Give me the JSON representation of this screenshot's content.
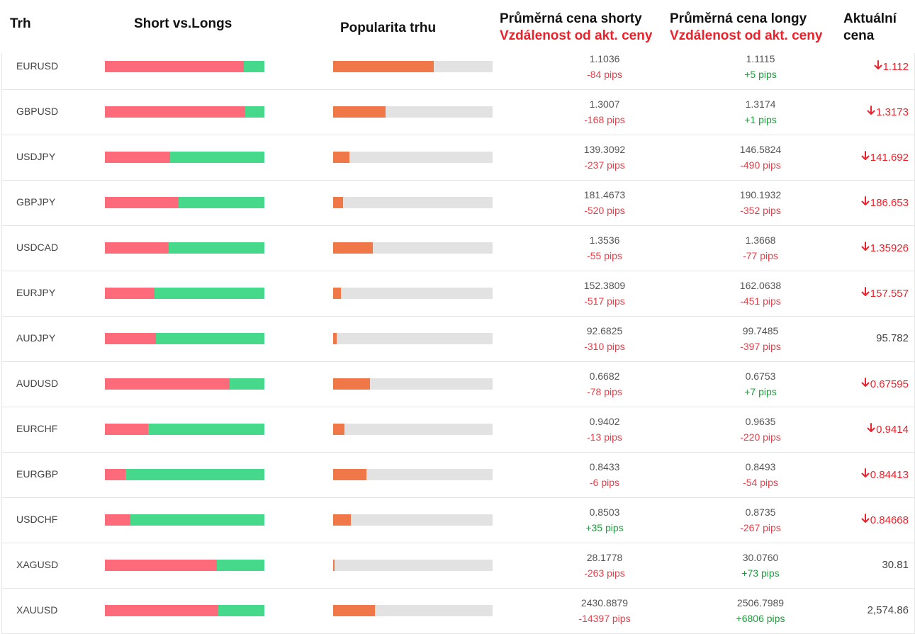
{
  "headers": {
    "market": "Trh",
    "short_long": "Short vs.Longs",
    "popularity": "Popularita trhu",
    "avg_short": "Průměrná cena shorty",
    "avg_short_sub": "Vzdálenost od akt. ceny",
    "avg_long": "Průměrná cena longy",
    "avg_long_sub": "Vzdálenost od akt. ceny",
    "current_1": "Aktuální",
    "current_2": "cena"
  },
  "rows": [
    {
      "pair": "EURUSD",
      "short_pct": 87,
      "popularity_pct": 63,
      "short_price": "1.1036",
      "short_dist": "-84 pips",
      "short_sign": "neg",
      "long_price": "1.1115",
      "long_dist": "+5 pips",
      "long_sign": "pos",
      "current": "1.112",
      "trend": "down"
    },
    {
      "pair": "GBPUSD",
      "short_pct": 88,
      "popularity_pct": 33,
      "short_price": "1.3007",
      "short_dist": "-168 pips",
      "short_sign": "neg",
      "long_price": "1.3174",
      "long_dist": "+1 pips",
      "long_sign": "pos",
      "current": "1.3173",
      "trend": "down"
    },
    {
      "pair": "USDJPY",
      "short_pct": 41,
      "popularity_pct": 10,
      "short_price": "139.3092",
      "short_dist": "-237 pips",
      "short_sign": "neg",
      "long_price": "146.5824",
      "long_dist": "-490 pips",
      "long_sign": "neg",
      "current": "141.692",
      "trend": "down"
    },
    {
      "pair": "GBPJPY",
      "short_pct": 46,
      "popularity_pct": 6,
      "short_price": "181.4673",
      "short_dist": "-520 pips",
      "short_sign": "neg",
      "long_price": "190.1932",
      "long_dist": "-352 pips",
      "long_sign": "neg",
      "current": "186.653",
      "trend": "down"
    },
    {
      "pair": "USDCAD",
      "short_pct": 40,
      "popularity_pct": 25,
      "short_price": "1.3536",
      "short_dist": "-55 pips",
      "short_sign": "neg",
      "long_price": "1.3668",
      "long_dist": "-77 pips",
      "long_sign": "neg",
      "current": "1.35926",
      "trend": "down"
    },
    {
      "pair": "EURJPY",
      "short_pct": 31,
      "popularity_pct": 5,
      "short_price": "152.3809",
      "short_dist": "-517 pips",
      "short_sign": "neg",
      "long_price": "162.0638",
      "long_dist": "-451 pips",
      "long_sign": "neg",
      "current": "157.557",
      "trend": "down"
    },
    {
      "pair": "AUDJPY",
      "short_pct": 32,
      "popularity_pct": 2,
      "short_price": "92.6825",
      "short_dist": "-310 pips",
      "short_sign": "neg",
      "long_price": "99.7485",
      "long_dist": "-397 pips",
      "long_sign": "neg",
      "current": "95.782",
      "trend": "flat"
    },
    {
      "pair": "AUDUSD",
      "short_pct": 78,
      "popularity_pct": 23,
      "short_price": "0.6682",
      "short_dist": "-78 pips",
      "short_sign": "neg",
      "long_price": "0.6753",
      "long_dist": "+7 pips",
      "long_sign": "pos",
      "current": "0.67595",
      "trend": "down"
    },
    {
      "pair": "EURCHF",
      "short_pct": 27,
      "popularity_pct": 7,
      "short_price": "0.9402",
      "short_dist": "-13 pips",
      "short_sign": "neg",
      "long_price": "0.9635",
      "long_dist": "-220 pips",
      "long_sign": "neg",
      "current": "0.9414",
      "trend": "down"
    },
    {
      "pair": "EURGBP",
      "short_pct": 13,
      "popularity_pct": 21,
      "short_price": "0.8433",
      "short_dist": "-6 pips",
      "short_sign": "neg",
      "long_price": "0.8493",
      "long_dist": "-54 pips",
      "long_sign": "neg",
      "current": "0.84413",
      "trend": "down"
    },
    {
      "pair": "USDCHF",
      "short_pct": 16,
      "popularity_pct": 11,
      "short_price": "0.8503",
      "short_dist": "+35 pips",
      "short_sign": "pos",
      "long_price": "0.8735",
      "long_dist": "-267 pips",
      "long_sign": "neg",
      "current": "0.84668",
      "trend": "down"
    },
    {
      "pair": "XAGUSD",
      "short_pct": 70,
      "popularity_pct": 1,
      "short_price": "28.1778",
      "short_dist": "-263 pips",
      "short_sign": "neg",
      "long_price": "30.0760",
      "long_dist": "+73 pips",
      "long_sign": "pos",
      "current": "30.81",
      "trend": "flat"
    },
    {
      "pair": "XAUUSD",
      "short_pct": 71,
      "popularity_pct": 26,
      "short_price": "2430.8879",
      "short_dist": "-14397 pips",
      "short_sign": "neg",
      "long_price": "2506.7989",
      "long_dist": "+6806 pips",
      "long_sign": "pos",
      "current": "2,574.86",
      "trend": "flat"
    }
  ],
  "colors": {
    "short_bar": "#fd6b7a",
    "long_bar": "#47d98b",
    "popularity_fill": "#f07848",
    "popularity_track": "#e2e2e2",
    "negative": "#e8404a",
    "positive": "#1a9e3a",
    "header_sub": "#e8232b"
  }
}
